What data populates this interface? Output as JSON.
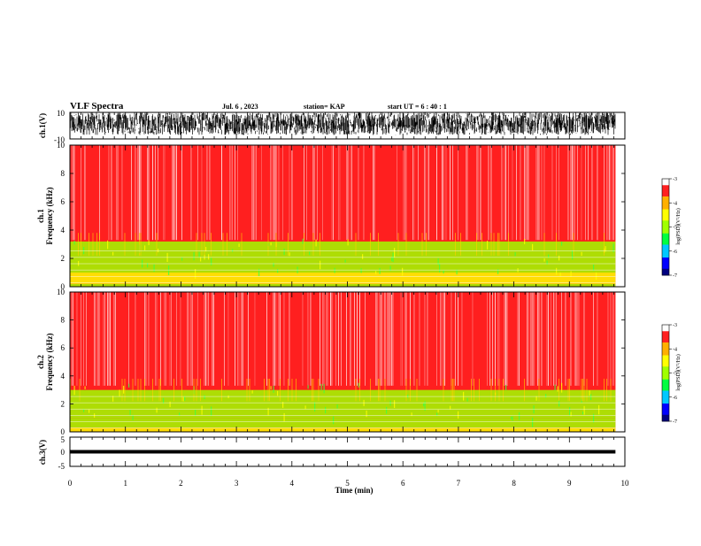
{
  "header": {
    "title": "VLF Spectra",
    "date": "Jul. 6 , 2023",
    "station": "station= KAP",
    "start_ut": "start UT = 6 : 40 : 1"
  },
  "colors": {
    "text": "#000000",
    "spectrogram_ramp": [
      "#000080",
      "#0000ff",
      "#00c8ff",
      "#00ff40",
      "#a0ff00",
      "#ffff00",
      "#ffb000",
      "#ff2020",
      "#ffffff"
    ]
  },
  "chart_data": [
    {
      "type": "line",
      "panel": "ch1-waveform",
      "ylabel": "ch.1(V)",
      "ylim": [
        -10,
        10
      ],
      "y_ticks": [
        "10",
        "-10"
      ],
      "x_range_min": [
        0,
        10
      ],
      "data_extent_min": [
        0,
        9.83
      ],
      "description_of_series": "dense noisy waveform mostly between -7 and +10 V",
      "series": [
        {
          "values_envelope": [
            -7,
            10
          ]
        }
      ]
    },
    {
      "type": "heatmap",
      "panel": "ch1-spectrogram",
      "ylabel_lines": [
        "ch.1",
        "Frequency (kHz)"
      ],
      "ylim_khz": [
        0,
        10
      ],
      "y_ticks": [
        "0",
        "2",
        "4",
        "6",
        "8",
        "10"
      ],
      "data_extent_min": [
        0,
        9.83
      ],
      "colorbar": {
        "label": "log(PSD)(V²/Hz)",
        "range": [
          -7,
          -3
        ],
        "ticks": [
          "-3",
          "-4",
          "-5",
          "-6",
          "-7"
        ]
      },
      "bands": [
        {
          "freq_khz": [
            0,
            0.2
          ],
          "level": -5.2
        },
        {
          "freq_khz": [
            0.2,
            1.0
          ],
          "level": -4.6
        },
        {
          "freq_khz": [
            1.0,
            3.2
          ],
          "level": -4.8
        },
        {
          "freq_khz": [
            3.2,
            10
          ],
          "level": -3.4
        }
      ]
    },
    {
      "type": "heatmap",
      "panel": "ch2-spectrogram",
      "ylabel_lines": [
        "ch.2",
        "Frequency (kHz)"
      ],
      "ylim_khz": [
        0,
        10
      ],
      "y_ticks": [
        "0",
        "2",
        "4",
        "6",
        "8",
        "10"
      ],
      "data_extent_min": [
        0,
        9.83
      ],
      "colorbar": {
        "label": "log(PSD)(V²/Hz)",
        "range": [
          -7,
          -3
        ],
        "ticks": [
          "-3",
          "-4",
          "-5",
          "-6",
          "-7"
        ]
      },
      "bands": [
        {
          "freq_khz": [
            0,
            0.3
          ],
          "level": -4.5
        },
        {
          "freq_khz": [
            0.3,
            1.0
          ],
          "level": -4.8
        },
        {
          "freq_khz": [
            1.0,
            3.0
          ],
          "level": -5.0
        },
        {
          "freq_khz": [
            3.0,
            10
          ],
          "level": -3.4
        }
      ]
    },
    {
      "type": "line",
      "panel": "ch3-waveform",
      "ylabel": "ch.3(V)",
      "ylim": [
        -5,
        5
      ],
      "y_ticks": [
        "5",
        "0",
        "-5"
      ],
      "data_extent_min": [
        0,
        9.83
      ],
      "series": [
        {
          "values_envelope": [
            -0.6,
            0.6
          ]
        }
      ]
    }
  ],
  "x_axis": {
    "label": "Time (min)",
    "range": [
      0,
      10
    ],
    "ticks": [
      "0",
      "1",
      "2",
      "3",
      "4",
      "5",
      "6",
      "7",
      "8",
      "9",
      "10"
    ]
  }
}
